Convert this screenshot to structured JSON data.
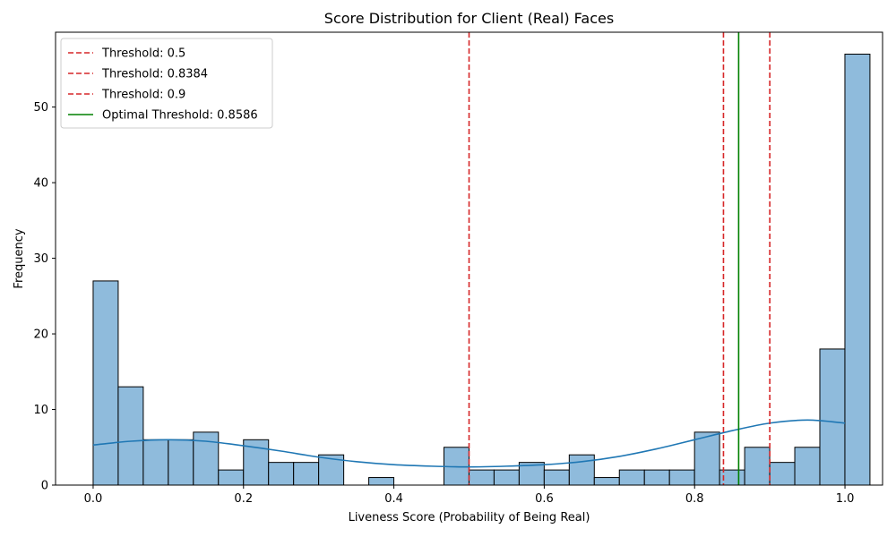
{
  "chart_data": {
    "type": "bar",
    "subtype": "histogram",
    "title": "Score Distribution for Client (Real) Faces",
    "xlabel": "Liveness Score (Probability of Being Real)",
    "ylabel": "Frequency",
    "xlim": [
      -0.05,
      1.05
    ],
    "ylim": [
      0,
      59.9
    ],
    "xticks": [
      0.0,
      0.2,
      0.4,
      0.6,
      0.8,
      1.0
    ],
    "xtick_labels": [
      "0.0",
      "0.2",
      "0.4",
      "0.6",
      "0.8",
      "1.0"
    ],
    "yticks": [
      0,
      10,
      20,
      30,
      40,
      50
    ],
    "ytick_labels": [
      "0",
      "10",
      "20",
      "30",
      "40",
      "50"
    ],
    "bin_edges_start": 0.0,
    "bin_width": 0.03333,
    "bin_counts": [
      27,
      13,
      6,
      6,
      7,
      2,
      6,
      3,
      3,
      4,
      0,
      1,
      0,
      0,
      5,
      2,
      2,
      3,
      2,
      4,
      1,
      2,
      2,
      2,
      7,
      2,
      5,
      3,
      5,
      18,
      57
    ],
    "kde": {
      "x": [
        0.0,
        0.05,
        0.1,
        0.15,
        0.2,
        0.25,
        0.3,
        0.35,
        0.4,
        0.45,
        0.5,
        0.55,
        0.6,
        0.65,
        0.7,
        0.75,
        0.8,
        0.85,
        0.9,
        0.95,
        1.0
      ],
      "y": [
        5.3,
        5.8,
        6.0,
        5.8,
        5.2,
        4.5,
        3.7,
        3.1,
        2.7,
        2.5,
        2.4,
        2.5,
        2.7,
        3.1,
        3.8,
        4.8,
        6.0,
        7.2,
        8.2,
        8.6,
        8.2
      ]
    },
    "thresholds": [
      {
        "value": 0.5,
        "label": "Threshold: 0.5",
        "style": "dashed",
        "color": "#d62728"
      },
      {
        "value": 0.8384,
        "label": "Threshold: 0.8384",
        "style": "dashed",
        "color": "#d62728"
      },
      {
        "value": 0.9,
        "label": "Threshold: 0.9",
        "style": "dashed",
        "color": "#d62728"
      },
      {
        "value": 0.8586,
        "label": "Optimal Threshold: 0.8586",
        "style": "solid",
        "color": "#008000"
      }
    ],
    "legend_position": "top-left",
    "colors": {
      "bar_fill": "#8fbbdc",
      "bar_edge": "#000000",
      "kde_line": "#1f77b4"
    }
  }
}
